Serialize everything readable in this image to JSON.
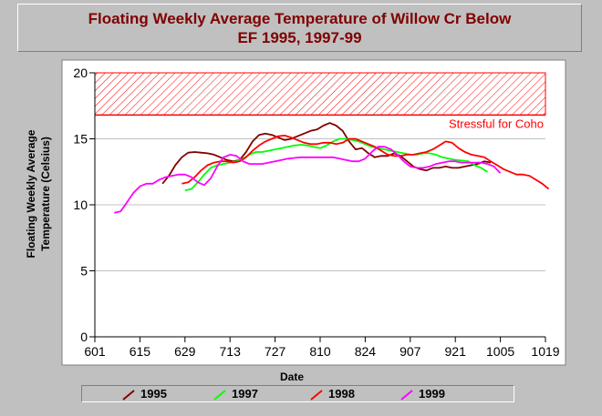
{
  "title_line1": "Floating Weekly Average Temperature of Willow Cr Below",
  "title_line2": "EF 1995, 1997-99",
  "chart_data": {
    "type": "line",
    "title": "Floating Weekly Average Temperature of Willow Cr Below EF 1995, 1997-99",
    "xlabel": "Date",
    "ylabel_line1": "Floating Weekly Average",
    "ylabel_line2": "Temperature (Celsius)",
    "ylim": [
      0,
      20
    ],
    "yticks": [
      "0",
      "5",
      "10",
      "15",
      "20"
    ],
    "xticks": [
      "601",
      "615",
      "629",
      "713",
      "727",
      "810",
      "824",
      "907",
      "921",
      "1005",
      "1019"
    ],
    "x_unit": "day offset from June 1 (ticks are month-day labels)",
    "grid": "horizontal",
    "legend_placement": "bottom",
    "threshold_band": {
      "label": "Stressful for Coho",
      "y_from": 16.8,
      "y_to": 20,
      "color": "#ff0000"
    },
    "series": [
      {
        "name": "1995",
        "color": "#800000",
        "points": [
          [
            21,
            11.6
          ],
          [
            23,
            12.2
          ],
          [
            25,
            13.0
          ],
          [
            27,
            13.6
          ],
          [
            29,
            13.95
          ],
          [
            31,
            14.0
          ],
          [
            33,
            13.95
          ],
          [
            35,
            13.9
          ],
          [
            37,
            13.8
          ],
          [
            39,
            13.6
          ],
          [
            41,
            13.4
          ],
          [
            43,
            13.3
          ],
          [
            45,
            13.4
          ],
          [
            47,
            14.0
          ],
          [
            49,
            14.8
          ],
          [
            51,
            15.3
          ],
          [
            53,
            15.4
          ],
          [
            55,
            15.3
          ],
          [
            57,
            15.1
          ],
          [
            59,
            14.9
          ],
          [
            61,
            15.0
          ],
          [
            63,
            15.2
          ],
          [
            65,
            15.4
          ],
          [
            67,
            15.6
          ],
          [
            69,
            15.7
          ],
          [
            71,
            16.0
          ],
          [
            73,
            16.2
          ],
          [
            75,
            16.0
          ],
          [
            77,
            15.6
          ],
          [
            79,
            14.8
          ],
          [
            81,
            14.2
          ],
          [
            83,
            14.3
          ],
          [
            85,
            13.9
          ],
          [
            87,
            13.6
          ],
          [
            89,
            13.7
          ],
          [
            91,
            13.7
          ],
          [
            93,
            13.9
          ],
          [
            95,
            13.7
          ],
          [
            97,
            13.3
          ],
          [
            99,
            12.9
          ],
          [
            101,
            12.7
          ],
          [
            103,
            12.6
          ],
          [
            105,
            12.8
          ],
          [
            107,
            12.8
          ],
          [
            109,
            12.9
          ],
          [
            111,
            12.8
          ],
          [
            113,
            12.8
          ],
          [
            115,
            12.9
          ],
          [
            117,
            13.0
          ],
          [
            119,
            13.1
          ],
          [
            121,
            13.3
          ],
          [
            123,
            13.2
          ]
        ]
      },
      {
        "name": "1997",
        "color": "#00ff00",
        "points": [
          [
            28,
            11.1
          ],
          [
            30,
            11.2
          ],
          [
            32,
            11.7
          ],
          [
            34,
            12.3
          ],
          [
            36,
            12.8
          ],
          [
            38,
            13.0
          ],
          [
            40,
            13.1
          ],
          [
            42,
            13.2
          ],
          [
            44,
            13.3
          ],
          [
            46,
            13.5
          ],
          [
            48,
            13.8
          ],
          [
            50,
            14.0
          ],
          [
            52,
            14.0
          ],
          [
            54,
            14.1
          ],
          [
            56,
            14.2
          ],
          [
            58,
            14.3
          ],
          [
            60,
            14.4
          ],
          [
            62,
            14.5
          ],
          [
            64,
            14.55
          ],
          [
            66,
            14.5
          ],
          [
            68,
            14.4
          ],
          [
            70,
            14.3
          ],
          [
            72,
            14.5
          ],
          [
            74,
            14.8
          ],
          [
            76,
            15.0
          ],
          [
            78,
            15.0
          ],
          [
            80,
            14.9
          ],
          [
            82,
            14.8
          ],
          [
            84,
            14.6
          ],
          [
            86,
            14.4
          ],
          [
            88,
            14.3
          ],
          [
            90,
            14.2
          ],
          [
            92,
            14.1
          ],
          [
            94,
            14.0
          ],
          [
            96,
            13.9
          ],
          [
            98,
            13.8
          ],
          [
            100,
            13.8
          ],
          [
            102,
            13.9
          ],
          [
            104,
            13.9
          ],
          [
            106,
            13.8
          ],
          [
            108,
            13.6
          ],
          [
            110,
            13.5
          ],
          [
            112,
            13.4
          ],
          [
            114,
            13.35
          ],
          [
            116,
            13.3
          ],
          [
            118,
            13.0
          ],
          [
            120,
            12.8
          ],
          [
            122,
            12.5
          ]
        ]
      },
      {
        "name": "1998",
        "color": "#ff0000",
        "points": [
          [
            27,
            11.6
          ],
          [
            29,
            11.7
          ],
          [
            31,
            12.1
          ],
          [
            33,
            12.6
          ],
          [
            35,
            13.0
          ],
          [
            37,
            13.2
          ],
          [
            39,
            13.3
          ],
          [
            41,
            13.3
          ],
          [
            43,
            13.2
          ],
          [
            45,
            13.3
          ],
          [
            47,
            13.6
          ],
          [
            49,
            14.1
          ],
          [
            51,
            14.5
          ],
          [
            53,
            14.8
          ],
          [
            55,
            15.0
          ],
          [
            57,
            15.2
          ],
          [
            59,
            15.25
          ],
          [
            61,
            15.1
          ],
          [
            63,
            14.9
          ],
          [
            65,
            14.7
          ],
          [
            67,
            14.6
          ],
          [
            69,
            14.6
          ],
          [
            71,
            14.7
          ],
          [
            73,
            14.7
          ],
          [
            75,
            14.6
          ],
          [
            77,
            14.7
          ],
          [
            79,
            15.0
          ],
          [
            81,
            15.0
          ],
          [
            83,
            14.8
          ],
          [
            85,
            14.6
          ],
          [
            87,
            14.4
          ],
          [
            89,
            14.1
          ],
          [
            91,
            13.8
          ],
          [
            93,
            13.7
          ],
          [
            95,
            13.7
          ],
          [
            97,
            13.8
          ],
          [
            99,
            13.8
          ],
          [
            101,
            13.9
          ],
          [
            103,
            14.0
          ],
          [
            105,
            14.2
          ],
          [
            107,
            14.5
          ],
          [
            109,
            14.8
          ],
          [
            111,
            14.7
          ],
          [
            113,
            14.3
          ],
          [
            115,
            14.0
          ],
          [
            117,
            13.8
          ],
          [
            119,
            13.7
          ],
          [
            121,
            13.6
          ],
          [
            123,
            13.3
          ],
          [
            125,
            13.0
          ],
          [
            127,
            12.7
          ],
          [
            129,
            12.5
          ],
          [
            131,
            12.3
          ],
          [
            133,
            12.3
          ],
          [
            135,
            12.2
          ],
          [
            137,
            11.9
          ],
          [
            139,
            11.6
          ],
          [
            141,
            11.2
          ]
        ]
      },
      {
        "name": "1999",
        "color": "#ff00ff",
        "points": [
          [
            6,
            9.4
          ],
          [
            8,
            9.5
          ],
          [
            10,
            10.2
          ],
          [
            12,
            10.9
          ],
          [
            14,
            11.4
          ],
          [
            16,
            11.6
          ],
          [
            18,
            11.6
          ],
          [
            20,
            11.9
          ],
          [
            22,
            12.1
          ],
          [
            24,
            12.2
          ],
          [
            26,
            12.3
          ],
          [
            28,
            12.3
          ],
          [
            30,
            12.1
          ],
          [
            32,
            11.7
          ],
          [
            34,
            11.5
          ],
          [
            36,
            12.0
          ],
          [
            38,
            12.9
          ],
          [
            40,
            13.6
          ],
          [
            42,
            13.8
          ],
          [
            44,
            13.7
          ],
          [
            46,
            13.3
          ],
          [
            48,
            13.1
          ],
          [
            50,
            13.1
          ],
          [
            52,
            13.1
          ],
          [
            54,
            13.2
          ],
          [
            56,
            13.3
          ],
          [
            58,
            13.4
          ],
          [
            60,
            13.5
          ],
          [
            62,
            13.55
          ],
          [
            64,
            13.6
          ],
          [
            66,
            13.6
          ],
          [
            68,
            13.6
          ],
          [
            70,
            13.6
          ],
          [
            72,
            13.6
          ],
          [
            74,
            13.6
          ],
          [
            76,
            13.5
          ],
          [
            78,
            13.4
          ],
          [
            80,
            13.3
          ],
          [
            82,
            13.3
          ],
          [
            84,
            13.5
          ],
          [
            86,
            14.0
          ],
          [
            88,
            14.4
          ],
          [
            90,
            14.4
          ],
          [
            92,
            14.2
          ],
          [
            94,
            13.8
          ],
          [
            96,
            13.3
          ],
          [
            98,
            12.9
          ],
          [
            100,
            12.8
          ],
          [
            102,
            12.8
          ],
          [
            104,
            12.9
          ],
          [
            106,
            13.1
          ],
          [
            108,
            13.2
          ],
          [
            110,
            13.3
          ],
          [
            112,
            13.3
          ],
          [
            114,
            13.2
          ],
          [
            116,
            13.2
          ],
          [
            118,
            13.2
          ],
          [
            120,
            13.2
          ],
          [
            122,
            13.1
          ],
          [
            124,
            12.9
          ],
          [
            126,
            12.4
          ]
        ]
      }
    ]
  }
}
